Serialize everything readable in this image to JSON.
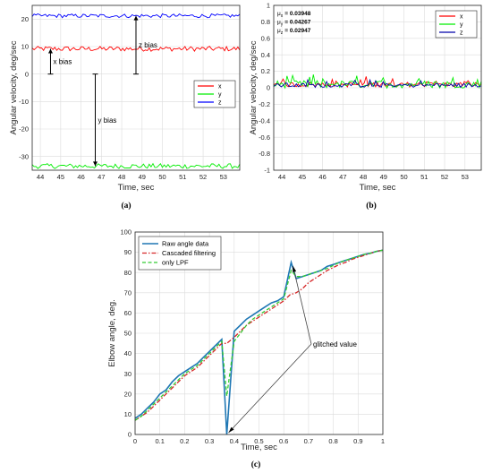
{
  "chart_data": [
    {
      "panel": "(a)",
      "type": "line",
      "xlabel": "Time, sec",
      "ylabel": "Angular velocity, deg/sec",
      "xlim": [
        43.6,
        53.8
      ],
      "ylim": [
        -35,
        25
      ],
      "xticks": [
        "44",
        "45",
        "46",
        "47",
        "48",
        "49",
        "50",
        "51",
        "52",
        "53"
      ],
      "yticks": [
        "-30",
        "-20",
        "-10",
        "0",
        "10",
        "20"
      ],
      "grid": true,
      "legend_position": "right",
      "series": [
        {
          "name": "x",
          "color": "#ff0000",
          "mean": 9.2,
          "noise": 0.9
        },
        {
          "name": "y",
          "color": "#00ee00",
          "mean": -33.5,
          "noise": 0.9
        },
        {
          "name": "z",
          "color": "#0000ff",
          "mean": 21.2,
          "noise": 0.7
        }
      ],
      "annotations": [
        {
          "text": "x bias",
          "x": 44.5,
          "from": 0,
          "to": 9.2
        },
        {
          "text": "y bias",
          "x": 46.7,
          "from": 0,
          "to": -33.5
        },
        {
          "text": "z bias",
          "x": 48.7,
          "from": 0,
          "to": 21.2
        }
      ]
    },
    {
      "panel": "(b)",
      "type": "line",
      "xlabel": "Time, sec",
      "ylabel": "Angular velocity, deg/sec",
      "xlim": [
        43.6,
        53.8
      ],
      "ylim": [
        -1,
        1
      ],
      "xticks": [
        "44",
        "45",
        "46",
        "47",
        "48",
        "49",
        "50",
        "51",
        "52",
        "53"
      ],
      "yticks": [
        "-1",
        "-0.8",
        "-0.6",
        "-0.4",
        "-0.2",
        "0",
        "0.2",
        "0.4",
        "0.6",
        "0.8",
        "1"
      ],
      "grid": true,
      "legend_position": "top-right",
      "stats": [
        {
          "symbol": "μ",
          "sub": "x",
          "value": "= 0.03948"
        },
        {
          "symbol": "μ",
          "sub": "y",
          "value": "= 0.04267"
        },
        {
          "symbol": "μ",
          "sub": "z",
          "value": "= 0.02947"
        }
      ],
      "series": [
        {
          "name": "x",
          "color": "#ff0000",
          "mean": 0.03948,
          "noise": 0.03
        },
        {
          "name": "y",
          "color": "#00ee00",
          "mean": 0.04267,
          "noise": 0.045
        },
        {
          "name": "z",
          "color": "#0000aa",
          "mean": 0.02947,
          "noise": 0.025
        }
      ]
    },
    {
      "panel": "(c)",
      "type": "line",
      "xlabel": "Time, sec",
      "ylabel": "Elbow angle, deg.",
      "xlim": [
        0,
        1
      ],
      "ylim": [
        0,
        100
      ],
      "xticks": [
        "0",
        "0.1",
        "0.2",
        "0.3",
        "0.4",
        "0.5",
        "0.6",
        "0.7",
        "0.8",
        "0.9",
        "1"
      ],
      "yticks": [
        "0",
        "10",
        "20",
        "30",
        "40",
        "50",
        "60",
        "70",
        "80",
        "90",
        "100"
      ],
      "grid": true,
      "legend_position": "top-left",
      "annotation": {
        "text": "glitched value",
        "targets": [
          [
            0.37,
            0
          ],
          [
            0.63,
            85
          ]
        ]
      },
      "series": [
        {
          "name": "Raw angle data",
          "color": "#1f77b4",
          "style": "solid",
          "x": [
            0,
            0.025,
            0.05,
            0.075,
            0.1,
            0.125,
            0.15,
            0.175,
            0.2,
            0.225,
            0.25,
            0.275,
            0.3,
            0.325,
            0.35,
            0.37,
            0.4,
            0.425,
            0.45,
            0.475,
            0.5,
            0.525,
            0.55,
            0.575,
            0.6,
            0.63,
            0.65,
            0.675,
            0.7,
            0.725,
            0.75,
            0.775,
            0.8,
            0.825,
            0.85,
            0.875,
            0.9,
            0.925,
            0.95,
            0.975,
            1.0
          ],
          "y": [
            8,
            10,
            13,
            16,
            20,
            22,
            26,
            29,
            31,
            33,
            35,
            38,
            41,
            44,
            47,
            0,
            51,
            54,
            57,
            59,
            61,
            63,
            65,
            66,
            68,
            85,
            77,
            78,
            79,
            80,
            81,
            83,
            84,
            85,
            86,
            87,
            88,
            89,
            89.5,
            90.5,
            91
          ]
        },
        {
          "name": "Cascaded filtering",
          "color": "#d62728",
          "style": "dashdot",
          "x": [
            0,
            0.025,
            0.05,
            0.075,
            0.1,
            0.125,
            0.15,
            0.175,
            0.2,
            0.225,
            0.25,
            0.275,
            0.3,
            0.325,
            0.35,
            0.37,
            0.4,
            0.425,
            0.45,
            0.475,
            0.5,
            0.525,
            0.55,
            0.575,
            0.6,
            0.625,
            0.65,
            0.675,
            0.7,
            0.725,
            0.75,
            0.775,
            0.8,
            0.825,
            0.85,
            0.875,
            0.9,
            0.925,
            0.95,
            0.975,
            1.0
          ],
          "y": [
            7,
            9,
            11,
            14,
            17,
            20,
            23,
            26,
            29,
            31,
            33,
            36,
            39,
            42,
            45,
            45,
            48,
            51,
            54,
            56,
            58,
            60,
            62,
            64,
            66,
            69,
            70,
            72,
            75,
            77,
            79,
            81,
            82.5,
            84,
            85,
            86.5,
            87.5,
            88.5,
            89.5,
            90.5,
            91
          ]
        },
        {
          "name": "only LPF",
          "color": "#33cc33",
          "style": "dashed",
          "x": [
            0,
            0.025,
            0.05,
            0.075,
            0.1,
            0.125,
            0.15,
            0.175,
            0.2,
            0.225,
            0.25,
            0.275,
            0.3,
            0.325,
            0.35,
            0.37,
            0.4,
            0.425,
            0.45,
            0.475,
            0.5,
            0.525,
            0.55,
            0.575,
            0.6,
            0.63,
            0.65,
            0.675,
            0.7,
            0.725,
            0.75,
            0.775,
            0.8,
            0.825,
            0.85,
            0.875,
            0.9,
            0.925,
            0.95,
            0.975,
            1.0
          ],
          "y": [
            7,
            9,
            12,
            15,
            18,
            21,
            24,
            27,
            30,
            32,
            34,
            37,
            40,
            43,
            46,
            19,
            46,
            50,
            54,
            57,
            59,
            61,
            63,
            65,
            67,
            81,
            78,
            78,
            79,
            80,
            81,
            82,
            83.5,
            85,
            86,
            87,
            88,
            89,
            89.5,
            90.5,
            91
          ]
        }
      ]
    }
  ]
}
